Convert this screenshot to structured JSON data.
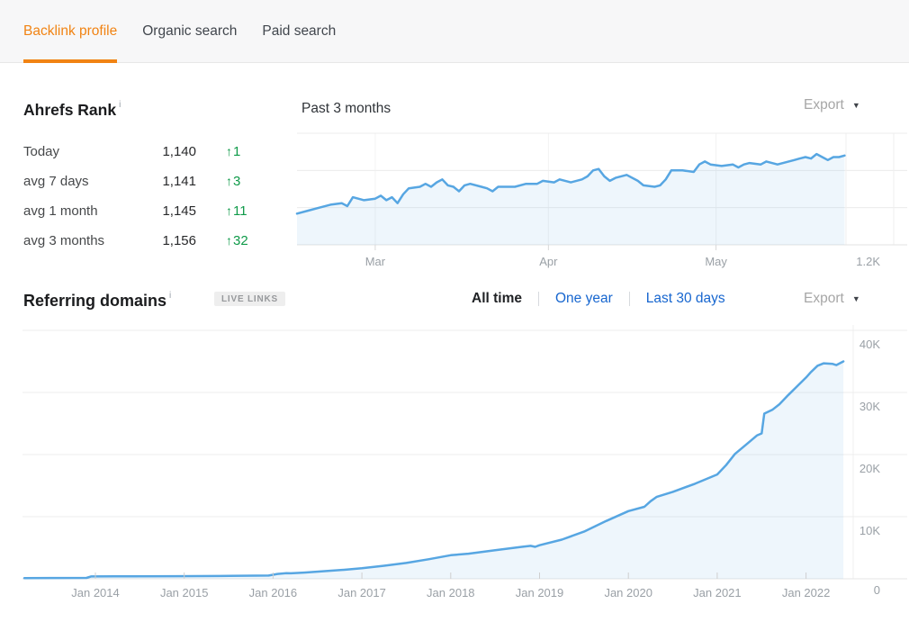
{
  "tabs": {
    "items": [
      {
        "label": "Backlink profile",
        "active": true
      },
      {
        "label": "Organic search",
        "active": false
      },
      {
        "label": "Paid search",
        "active": false
      }
    ]
  },
  "ahrefs_rank": {
    "title": "Ahrefs Rank",
    "info_icon": "i",
    "delta_arrow": "↑",
    "rows": [
      {
        "label": "Today",
        "value": "1,140",
        "delta": "1"
      },
      {
        "label": "avg 7 days",
        "value": "1,141",
        "delta": "3"
      },
      {
        "label": "avg 1 month",
        "value": "1,145",
        "delta": "11"
      },
      {
        "label": "avg 3 months",
        "value": "1,156",
        "delta": "32"
      }
    ],
    "chart_title": "Past 3 months",
    "export_label": "Export",
    "export_caret": "▼"
  },
  "referring_domains": {
    "title": "Referring domains",
    "info_icon": "i",
    "badge": "LIVE LINKS",
    "range_options": [
      {
        "label": "All time",
        "selected": true
      },
      {
        "label": "One year",
        "selected": false
      },
      {
        "label": "Last 30 days",
        "selected": false
      }
    ],
    "export_label": "Export",
    "export_caret": "▼"
  },
  "colors": {
    "accent_orange": "#f18313",
    "link_blue": "#1766cf",
    "positive_green": "#0f9a49",
    "chart_line_blue": "#57a6e2",
    "chart_fill_blue": "rgba(87,166,226,0.10)",
    "gridline": "#ececec",
    "axis_label": "#9aa0a6"
  },
  "chart_data": [
    {
      "type": "area",
      "name": "ahrefs-rank-past-3-months",
      "title": "Past 3 months",
      "x_unit": "day_from_chart_start",
      "x_ticks": [
        {
          "pos": 14,
          "label": "Mar"
        },
        {
          "pos": 45,
          "label": "Apr"
        },
        {
          "pos": 75,
          "label": "May"
        }
      ],
      "y_axis": {
        "inverted": true,
        "bottom_value": 1200,
        "bottom_label": "1.2K",
        "gridline_values": [
          1125,
          1150,
          1175
        ]
      },
      "legend": "none",
      "points": [
        [
          0,
          1179
        ],
        [
          2,
          1177
        ],
        [
          4,
          1175
        ],
        [
          6,
          1173
        ],
        [
          8,
          1172
        ],
        [
          9,
          1174
        ],
        [
          10,
          1168
        ],
        [
          12,
          1170
        ],
        [
          14,
          1169
        ],
        [
          15,
          1167
        ],
        [
          16,
          1170
        ],
        [
          17,
          1168
        ],
        [
          18,
          1172
        ],
        [
          19,
          1166
        ],
        [
          20,
          1162
        ],
        [
          22,
          1161
        ],
        [
          23,
          1159
        ],
        [
          24,
          1161
        ],
        [
          25,
          1158
        ],
        [
          26,
          1156
        ],
        [
          27,
          1160
        ],
        [
          28,
          1161
        ],
        [
          29,
          1164
        ],
        [
          30,
          1160
        ],
        [
          31,
          1159
        ],
        [
          33,
          1161
        ],
        [
          34,
          1162
        ],
        [
          35,
          1164
        ],
        [
          36,
          1161
        ],
        [
          39,
          1161
        ],
        [
          41,
          1159
        ],
        [
          43,
          1159
        ],
        [
          44,
          1157
        ],
        [
          46,
          1158
        ],
        [
          47,
          1156
        ],
        [
          49,
          1158
        ],
        [
          51,
          1156
        ],
        [
          52,
          1154
        ],
        [
          53,
          1150
        ],
        [
          54,
          1149
        ],
        [
          55,
          1154
        ],
        [
          56,
          1157
        ],
        [
          57,
          1155
        ],
        [
          59,
          1153
        ],
        [
          61,
          1157
        ],
        [
          62,
          1160
        ],
        [
          64,
          1161
        ],
        [
          65,
          1160
        ],
        [
          66,
          1156
        ],
        [
          67,
          1150
        ],
        [
          69,
          1150
        ],
        [
          71,
          1151
        ],
        [
          72,
          1146
        ],
        [
          73,
          1144
        ],
        [
          74,
          1146
        ],
        [
          76,
          1147
        ],
        [
          78,
          1146
        ],
        [
          79,
          1148
        ],
        [
          80,
          1146
        ],
        [
          81,
          1145
        ],
        [
          83,
          1146
        ],
        [
          84,
          1144
        ],
        [
          85,
          1145
        ],
        [
          86,
          1146
        ],
        [
          88,
          1144
        ],
        [
          89,
          1143
        ],
        [
          90,
          1142
        ],
        [
          91,
          1141
        ],
        [
          92,
          1142
        ],
        [
          93,
          1139
        ],
        [
          94,
          1141
        ],
        [
          95,
          1143
        ],
        [
          96,
          1141
        ],
        [
          97,
          1141
        ],
        [
          98,
          1140
        ]
      ]
    },
    {
      "type": "area",
      "name": "referring-domains-all-time",
      "x_unit": "decimal_year",
      "x_ticks": [
        {
          "pos": 2014,
          "label": "Jan 2014"
        },
        {
          "pos": 2015,
          "label": "Jan 2015"
        },
        {
          "pos": 2016,
          "label": "Jan 2016"
        },
        {
          "pos": 2017,
          "label": "Jan 2017"
        },
        {
          "pos": 2018,
          "label": "Jan 2018"
        },
        {
          "pos": 2019,
          "label": "Jan 2019"
        },
        {
          "pos": 2020,
          "label": "Jan 2020"
        },
        {
          "pos": 2021,
          "label": "Jan 2021"
        },
        {
          "pos": 2022,
          "label": "Jan 2022"
        }
      ],
      "y_ticks": [
        {
          "value": 0,
          "label": "0"
        },
        {
          "value": 10000,
          "label": "10K"
        },
        {
          "value": 20000,
          "label": "20K"
        },
        {
          "value": 30000,
          "label": "30K"
        },
        {
          "value": 40000,
          "label": "40K"
        }
      ],
      "legend": "none",
      "points": [
        [
          2013.2,
          100
        ],
        [
          2013.5,
          130
        ],
        [
          2013.9,
          150
        ],
        [
          2013.95,
          380
        ],
        [
          2014.4,
          400
        ],
        [
          2014.9,
          420
        ],
        [
          2015.4,
          450
        ],
        [
          2015.95,
          520
        ],
        [
          2016.05,
          780
        ],
        [
          2016.15,
          920
        ],
        [
          2016.2,
          880
        ],
        [
          2016.35,
          1000
        ],
        [
          2016.6,
          1250
        ],
        [
          2016.8,
          1450
        ],
        [
          2017.0,
          1700
        ],
        [
          2017.25,
          2100
        ],
        [
          2017.5,
          2550
        ],
        [
          2017.75,
          3150
        ],
        [
          2018.0,
          3800
        ],
        [
          2018.2,
          4050
        ],
        [
          2018.5,
          4600
        ],
        [
          2018.8,
          5150
        ],
        [
          2018.9,
          5300
        ],
        [
          2018.95,
          5150
        ],
        [
          2019.0,
          5400
        ],
        [
          2019.25,
          6300
        ],
        [
          2019.5,
          7600
        ],
        [
          2019.75,
          9300
        ],
        [
          2020.0,
          10900
        ],
        [
          2020.18,
          11600
        ],
        [
          2020.25,
          12500
        ],
        [
          2020.32,
          13200
        ],
        [
          2020.5,
          14000
        ],
        [
          2020.75,
          15300
        ],
        [
          2021.0,
          16800
        ],
        [
          2021.1,
          18300
        ],
        [
          2021.2,
          20100
        ],
        [
          2021.35,
          21900
        ],
        [
          2021.45,
          23100
        ],
        [
          2021.5,
          23400
        ],
        [
          2021.53,
          26600
        ],
        [
          2021.62,
          27200
        ],
        [
          2021.7,
          28100
        ],
        [
          2021.8,
          29600
        ],
        [
          2021.9,
          31000
        ],
        [
          2022.0,
          32400
        ],
        [
          2022.05,
          33200
        ],
        [
          2022.13,
          34300
        ],
        [
          2022.2,
          34700
        ],
        [
          2022.3,
          34600
        ],
        [
          2022.34,
          34400
        ],
        [
          2022.42,
          35000
        ]
      ]
    }
  ]
}
